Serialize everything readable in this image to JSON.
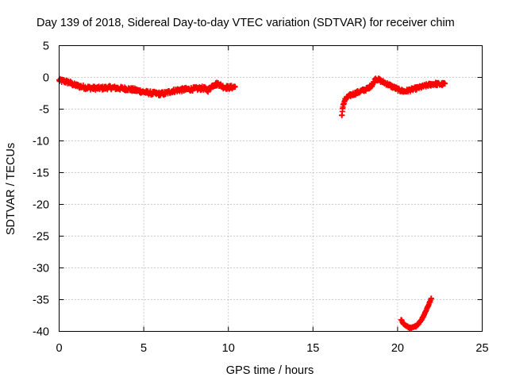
{
  "chart_data": {
    "type": "scatter",
    "title": "Day 139 of 2018, Sidereal Day-to-day VTEC variation (SDTVAR) for receiver chim",
    "xlabel": "GPS time / hours",
    "ylabel": "SDTVAR / TECUs",
    "xlim": [
      0,
      25
    ],
    "ylim": [
      -40,
      5
    ],
    "x_ticks": [
      0,
      5,
      10,
      15,
      20,
      25
    ],
    "y_ticks": [
      5,
      0,
      -5,
      -10,
      -15,
      -20,
      -25,
      -30,
      -35,
      -40
    ],
    "x_tick_labels": [
      "0",
      "5",
      "10",
      "15",
      "20",
      "25"
    ],
    "y_tick_labels": [
      "5",
      "0",
      "-5",
      "-10",
      "-15",
      "-20",
      "-25",
      "-30",
      "-35",
      "-40"
    ],
    "grid": true,
    "marker": "plus",
    "series": [
      {
        "name": "SDTVAR",
        "color": "#ff0000",
        "segments": [
          {
            "x": [
              0.0,
              0.3,
              0.6,
              0.9,
              1.2,
              1.6,
              2.0,
              2.5,
              3.0,
              3.5,
              4.0,
              4.5,
              5.0,
              5.5,
              6.0,
              6.3,
              6.6,
              7.0,
              7.5,
              8.0,
              8.5,
              8.8,
              9.1,
              9.4,
              9.7,
              10.0,
              10.4
            ],
            "y": [
              -0.5,
              -0.6,
              -0.8,
              -1.2,
              -1.4,
              -1.6,
              -1.7,
              -1.7,
              -1.6,
              -1.7,
              -1.8,
              -2.0,
              -2.3,
              -2.5,
              -2.6,
              -2.5,
              -2.2,
              -2.0,
              -1.9,
              -1.8,
              -1.7,
              -2.0,
              -1.2,
              -1.0,
              -1.5,
              -1.6,
              -1.5
            ],
            "spread": 0.6
          },
          {
            "x": [
              16.7,
              16.8,
              16.9,
              17.1,
              17.3,
              17.6,
              17.9,
              18.2,
              18.5,
              18.7,
              18.9,
              19.2,
              19.5,
              19.8,
              20.1,
              20.4,
              20.7,
              21.0,
              21.4,
              21.8,
              22.2,
              22.5,
              22.8
            ],
            "y": [
              -6.0,
              -4.2,
              -3.5,
              -3.0,
              -2.7,
              -2.4,
              -2.1,
              -1.8,
              -1.2,
              -0.2,
              -0.4,
              -0.8,
              -1.2,
              -1.6,
              -2.0,
              -2.2,
              -2.0,
              -1.8,
              -1.5,
              -1.2,
              -1.0,
              -1.1,
              -1.0
            ],
            "spread": 0.5
          },
          {
            "x": [
              20.2,
              20.4,
              20.6,
              20.8,
              21.0,
              21.2,
              21.4,
              21.6,
              21.8,
              22.0
            ],
            "y": [
              -38.2,
              -38.9,
              -39.3,
              -39.5,
              -39.3,
              -38.9,
              -38.2,
              -37.2,
              -36.0,
              -34.8
            ],
            "spread": 0.25
          }
        ]
      }
    ]
  }
}
